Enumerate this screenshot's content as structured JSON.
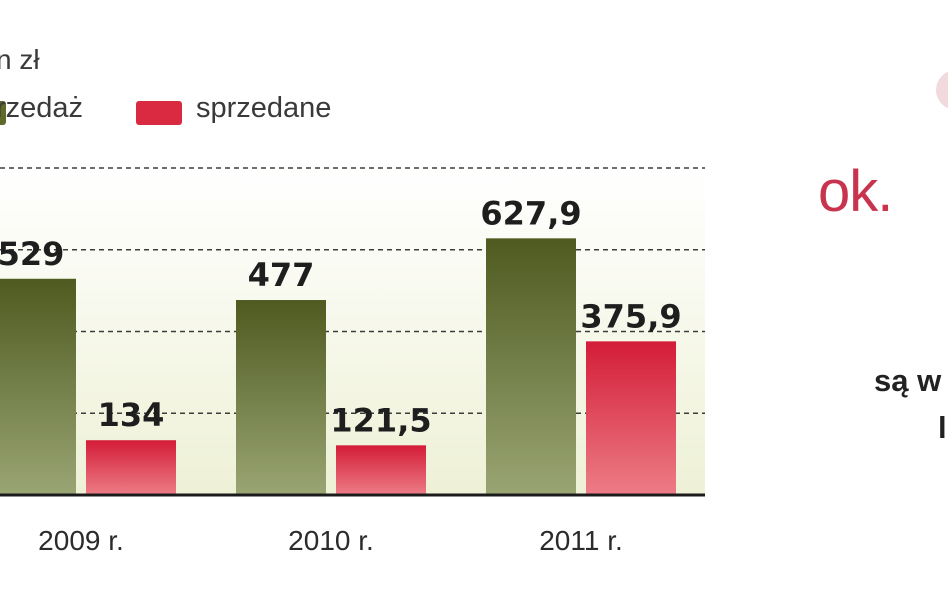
{
  "chart_data": {
    "type": "bar",
    "unit": "n zł",
    "categories": [
      "2009 r.",
      "2010 r.",
      "2011 r."
    ],
    "series": [
      {
        "name": "rzedaż",
        "values": [
          529,
          477,
          627.9
        ],
        "labels": [
          "529",
          "477",
          "627,9"
        ]
      },
      {
        "name": "sprzedane",
        "values": [
          134,
          121.5,
          375.9
        ],
        "labels": [
          "134",
          "121,5",
          "375,9"
        ]
      }
    ],
    "ylim": [
      0,
      800
    ],
    "grid": true,
    "legend": "top-left",
    "colors": {
      "series1": "#5d6a2a",
      "series2": "#d92a42",
      "plot_bg": "#f3f5e2"
    }
  },
  "side_panel": {
    "ok_text": "ok.",
    "line1": "są w",
    "line2": "l"
  }
}
